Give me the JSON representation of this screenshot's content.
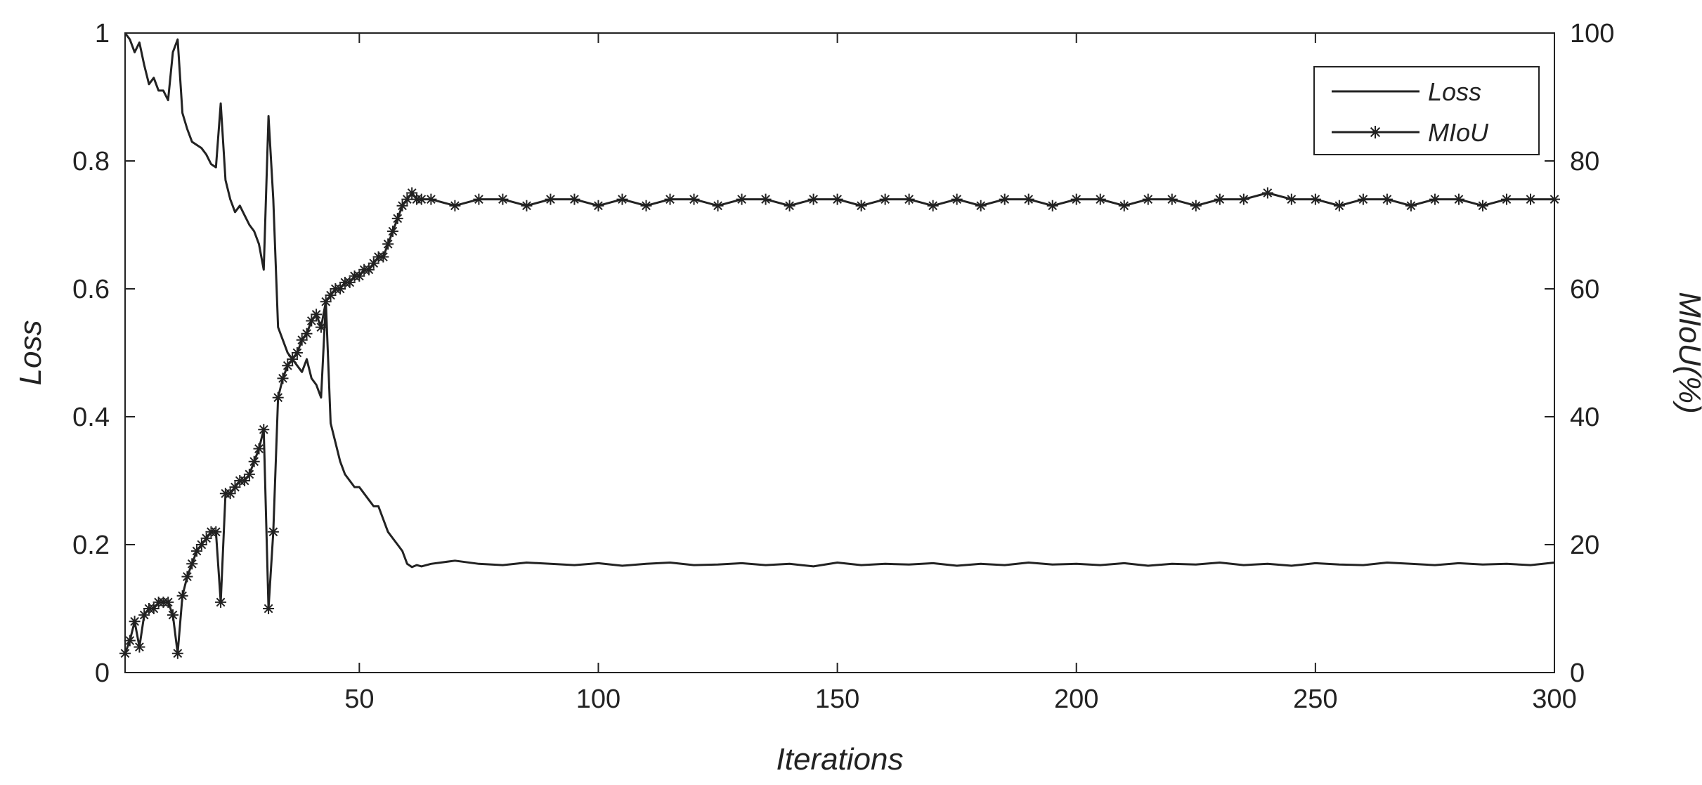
{
  "chart_data": {
    "type": "line",
    "title": "",
    "xlabel": "Iterations",
    "ylabel_left": "Loss",
    "ylabel_right": "MIoU(%)",
    "xlim": [
      1,
      300
    ],
    "ylim_left": [
      0,
      1
    ],
    "ylim_right": [
      0,
      100
    ],
    "x_ticks": [
      50,
      100,
      150,
      200,
      250,
      300
    ],
    "y_ticks_left": [
      0,
      0.2,
      0.4,
      0.6,
      0.8,
      1
    ],
    "y_ticks_right": [
      0,
      20,
      40,
      60,
      80,
      100
    ],
    "grid": false,
    "legend_position": "top-right",
    "legend": [
      "Loss",
      "MIoU"
    ],
    "series": [
      {
        "name": "Loss",
        "axis": "left",
        "marker": "none",
        "x": [
          1,
          2,
          3,
          4,
          5,
          6,
          7,
          8,
          9,
          10,
          11,
          12,
          13,
          14,
          15,
          16,
          17,
          18,
          19,
          20,
          21,
          22,
          23,
          24,
          25,
          26,
          27,
          28,
          29,
          30,
          31,
          32,
          33,
          34,
          35,
          36,
          37,
          38,
          39,
          40,
          41,
          42,
          43,
          44,
          45,
          46,
          47,
          48,
          49,
          50,
          51,
          52,
          53,
          54,
          55,
          56,
          57,
          58,
          59,
          60,
          61,
          62,
          63,
          65,
          70,
          75,
          80,
          85,
          90,
          95,
          100,
          105,
          110,
          115,
          120,
          125,
          130,
          135,
          140,
          145,
          150,
          155,
          160,
          165,
          170,
          175,
          180,
          185,
          190,
          195,
          200,
          205,
          210,
          215,
          220,
          225,
          230,
          235,
          240,
          245,
          250,
          255,
          260,
          265,
          270,
          275,
          280,
          285,
          290,
          295,
          300
        ],
        "values": [
          1.0,
          0.99,
          0.97,
          0.985,
          0.95,
          0.92,
          0.93,
          0.91,
          0.91,
          0.895,
          0.97,
          0.99,
          0.875,
          0.85,
          0.83,
          0.825,
          0.82,
          0.81,
          0.795,
          0.79,
          0.89,
          0.77,
          0.74,
          0.72,
          0.73,
          0.715,
          0.7,
          0.69,
          0.67,
          0.63,
          0.87,
          0.74,
          0.54,
          0.52,
          0.5,
          0.49,
          0.48,
          0.47,
          0.49,
          0.46,
          0.45,
          0.43,
          0.58,
          0.39,
          0.36,
          0.33,
          0.31,
          0.3,
          0.29,
          0.29,
          0.28,
          0.27,
          0.26,
          0.26,
          0.24,
          0.22,
          0.21,
          0.2,
          0.19,
          0.17,
          0.165,
          0.168,
          0.166,
          0.17,
          0.175,
          0.17,
          0.168,
          0.172,
          0.17,
          0.168,
          0.171,
          0.167,
          0.17,
          0.172,
          0.168,
          0.169,
          0.171,
          0.168,
          0.17,
          0.166,
          0.172,
          0.168,
          0.17,
          0.169,
          0.171,
          0.167,
          0.17,
          0.168,
          0.172,
          0.169,
          0.17,
          0.168,
          0.171,
          0.167,
          0.17,
          0.169,
          0.172,
          0.168,
          0.17,
          0.167,
          0.171,
          0.169,
          0.168,
          0.172,
          0.17,
          0.168,
          0.171,
          0.169,
          0.17,
          0.168,
          0.172
        ]
      },
      {
        "name": "MIoU",
        "axis": "right",
        "marker": "asterisk",
        "x": [
          1,
          2,
          3,
          4,
          5,
          6,
          7,
          8,
          9,
          10,
          11,
          12,
          13,
          14,
          15,
          16,
          17,
          18,
          19,
          20,
          21,
          22,
          23,
          24,
          25,
          26,
          27,
          28,
          29,
          30,
          31,
          32,
          33,
          34,
          35,
          36,
          37,
          38,
          39,
          40,
          41,
          42,
          43,
          44,
          45,
          46,
          47,
          48,
          49,
          50,
          51,
          52,
          53,
          54,
          55,
          56,
          57,
          58,
          59,
          60,
          61,
          62,
          63,
          65,
          70,
          75,
          80,
          85,
          90,
          95,
          100,
          105,
          110,
          115,
          120,
          125,
          130,
          135,
          140,
          145,
          150,
          155,
          160,
          165,
          170,
          175,
          180,
          185,
          190,
          195,
          200,
          205,
          210,
          215,
          220,
          225,
          230,
          235,
          240,
          245,
          250,
          255,
          260,
          265,
          270,
          275,
          280,
          285,
          290,
          295,
          300
        ],
        "values": [
          3,
          5,
          8,
          4,
          9,
          10,
          10,
          11,
          11,
          11,
          9,
          3,
          12,
          15,
          17,
          19,
          20,
          21,
          22,
          22,
          11,
          28,
          28,
          29,
          30,
          30,
          31,
          33,
          35,
          38,
          10,
          22,
          43,
          46,
          48,
          49,
          50,
          52,
          53,
          55,
          56,
          54,
          58,
          59,
          60,
          60,
          61,
          61,
          62,
          62,
          63,
          63,
          64,
          65,
          65,
          67,
          69,
          71,
          73,
          74,
          75,
          74,
          74,
          74,
          73,
          74,
          74,
          73,
          74,
          74,
          73,
          74,
          73,
          74,
          74,
          73,
          74,
          74,
          73,
          74,
          74,
          73,
          74,
          74,
          73,
          74,
          73,
          74,
          74,
          73,
          74,
          74,
          73,
          74,
          74,
          73,
          74,
          74,
          75,
          74,
          74,
          73,
          74,
          74,
          73,
          74,
          74,
          73,
          74,
          74,
          74
        ]
      }
    ]
  }
}
